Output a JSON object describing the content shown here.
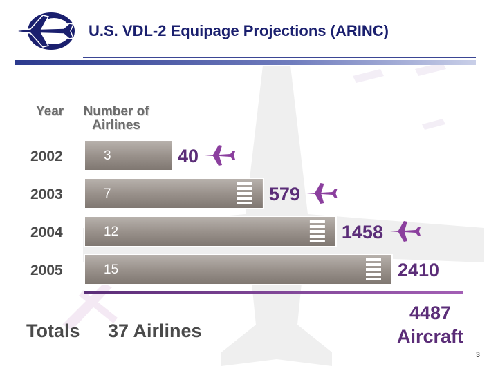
{
  "title": "U.S. VDL-2 Equipage Projections (ARINC)",
  "page_number": "3",
  "icons": {
    "logo": "airplane-logo-icon",
    "plane": "airplane-icon"
  },
  "colors": {
    "title": "#1a1f6e",
    "accent": "#8b3f9e",
    "bar": "#9a928c",
    "aircraft_label": "#5b2d78"
  },
  "chart_data": {
    "type": "bar",
    "orientation": "horizontal",
    "column_headers": [
      "Year",
      "Number of\nAirlines"
    ],
    "categories": [
      "2002",
      "2003",
      "2004",
      "2005"
    ],
    "series": [
      {
        "values": [
          3,
          7,
          12,
          15
        ]
      },
      {
        "values": [
          40,
          579,
          1458,
          2410
        ]
      }
    ],
    "totals": {
      "label": "Totals",
      "airlines": "37 Airlines",
      "aircraft_line1": "4487",
      "aircraft_line2": "Aircraft"
    },
    "grid": false
  }
}
